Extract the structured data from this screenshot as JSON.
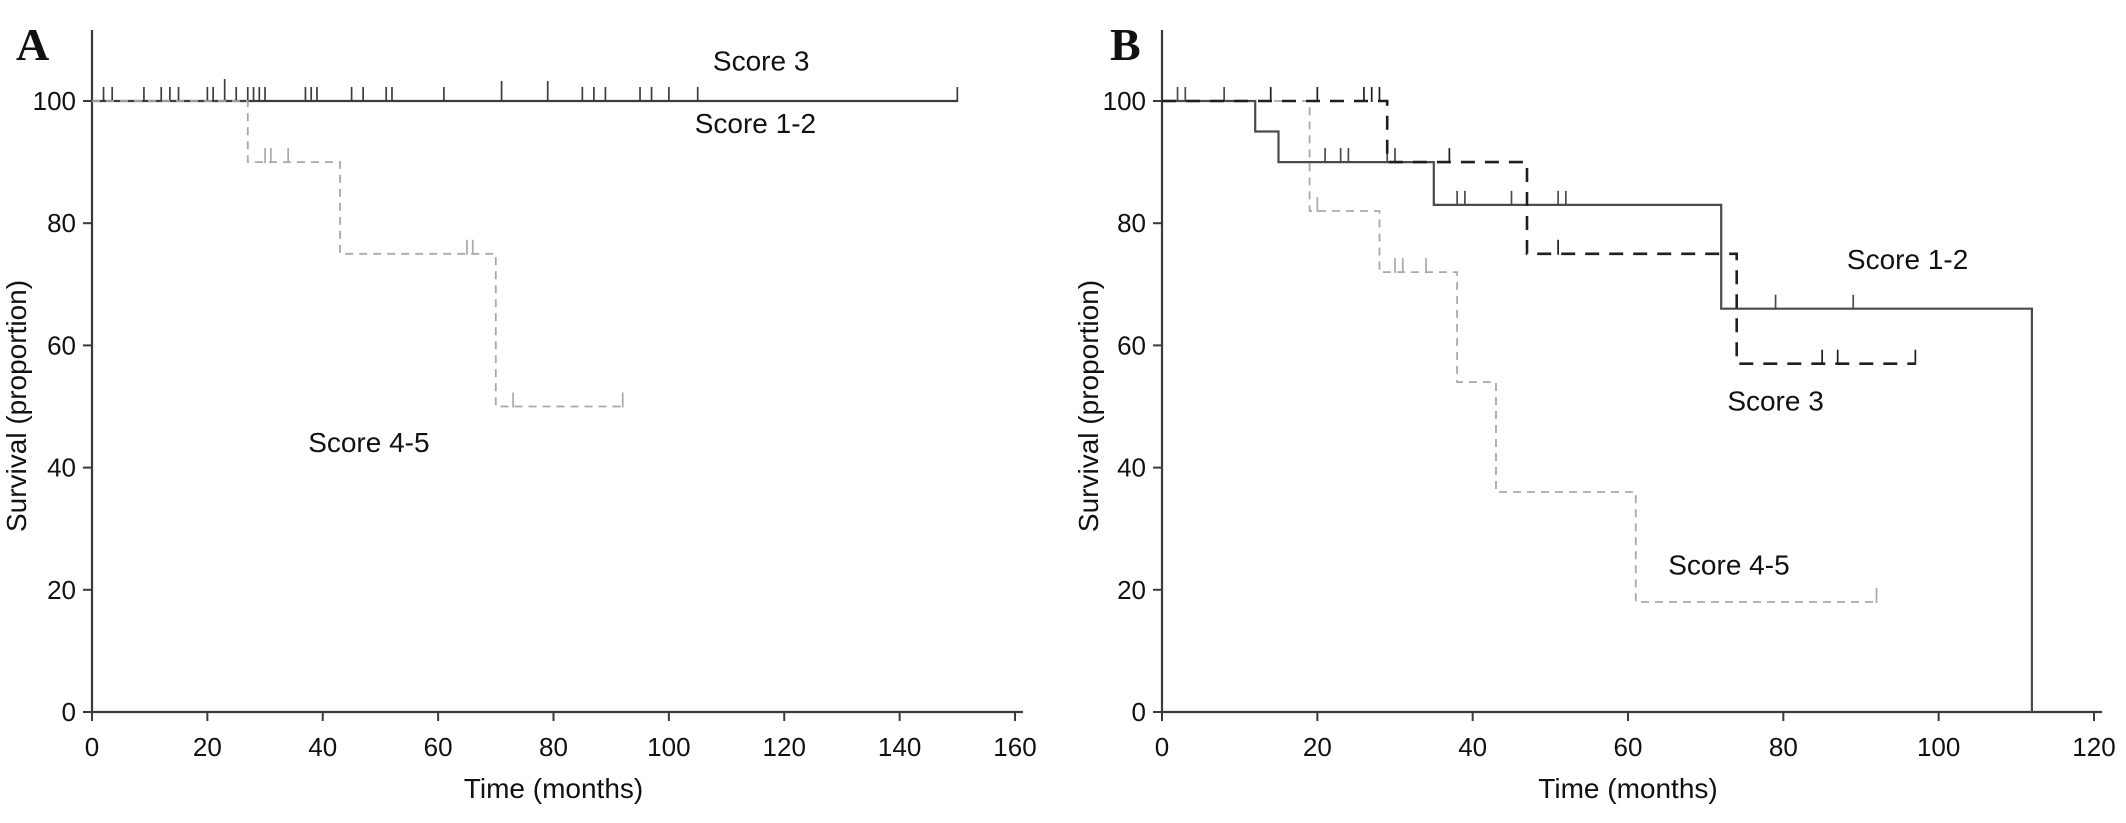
{
  "figure": {
    "background": "#ffffff",
    "axis_color": "#3a3a3a",
    "text_color": "#111111",
    "panels": [
      {
        "letter": "A"
      },
      {
        "letter": "B"
      }
    ]
  },
  "chart_data": [
    {
      "type": "line",
      "panel": "A",
      "subtype": "kaplan-meier-step",
      "xlabel": "Time (months)",
      "ylabel": "Survival (proportion)",
      "xlim": [
        0,
        160
      ],
      "ylim": [
        0,
        100
      ],
      "xticks": [
        0,
        20,
        40,
        60,
        80,
        100,
        120,
        140,
        160
      ],
      "yticks": [
        0,
        20,
        40,
        60,
        80,
        100
      ],
      "grid": false,
      "legend": "inline-labels",
      "series": [
        {
          "name": "Score 3",
          "line_style": "solid",
          "color": "#3d3d3d",
          "width": 2.2,
          "dash": null,
          "steps": [
            [
              0,
              100
            ],
            [
              150,
              100
            ]
          ],
          "censors": [
            [
              2,
              100
            ],
            [
              3.5,
              100
            ],
            [
              9,
              100
            ],
            [
              12,
              100
            ],
            [
              13.5,
              100
            ],
            [
              15,
              100
            ],
            [
              20,
              100
            ],
            [
              21,
              100
            ],
            [
              23,
              100,
              22
            ],
            [
              25,
              100
            ],
            [
              27,
              100
            ],
            [
              28,
              100
            ],
            [
              29,
              100
            ],
            [
              30,
              100
            ],
            [
              37,
              100
            ],
            [
              38,
              100
            ],
            [
              39,
              100
            ],
            [
              45,
              100
            ],
            [
              47,
              100
            ],
            [
              51,
              100
            ],
            [
              52,
              100
            ],
            [
              61,
              100
            ],
            [
              71,
              100,
              20
            ],
            [
              79,
              100,
              20
            ],
            [
              85,
              100
            ],
            [
              87,
              100
            ],
            [
              89,
              100
            ],
            [
              95,
              100
            ],
            [
              97,
              100
            ],
            [
              100,
              100
            ],
            [
              105,
              100
            ],
            [
              150,
              100
            ]
          ],
          "label": {
            "text": "Score 3",
            "x": 116,
            "y": 106.5
          }
        },
        {
          "name": "Score 1-2",
          "line_style": "dashed",
          "color": "#3d3d3d",
          "width": 2.0,
          "dash": "10,7",
          "steps": [
            [
              0,
              100
            ],
            [
              150,
              100
            ]
          ],
          "censors": [],
          "label": {
            "text": "Score 1-2",
            "x": 115,
            "y": 96.2
          }
        },
        {
          "name": "Score 4-5",
          "line_style": "dashed",
          "color": "#a9a9a9",
          "width": 1.8,
          "dash": "8,6",
          "steps": [
            [
              0,
              100
            ],
            [
              27,
              100
            ],
            [
              27,
              90
            ],
            [
              43,
              90
            ],
            [
              43,
              75
            ],
            [
              70,
              75
            ],
            [
              70,
              50
            ],
            [
              92,
              50
            ]
          ],
          "censors": [
            [
              30,
              90
            ],
            [
              31,
              90
            ],
            [
              34,
              90
            ],
            [
              65,
              75
            ],
            [
              66,
              75
            ],
            [
              73,
              50
            ],
            [
              92,
              50
            ]
          ],
          "label": {
            "text": "Score 4-5",
            "x": 48,
            "y": 44
          }
        }
      ]
    },
    {
      "type": "line",
      "panel": "B",
      "subtype": "kaplan-meier-step",
      "xlabel": "Time (months)",
      "ylabel": "Survival (proportion)",
      "xlim": [
        0,
        120
      ],
      "ylim": [
        0,
        100
      ],
      "xticks": [
        0,
        20,
        40,
        60,
        80,
        100,
        120
      ],
      "yticks": [
        0,
        20,
        40,
        60,
        80,
        100
      ],
      "grid": false,
      "legend": "inline-labels",
      "series": [
        {
          "name": "Score 4-5",
          "line_style": "dashed",
          "color": "#a9a9a9",
          "width": 1.8,
          "dash": "8,6",
          "steps": [
            [
              0,
              100
            ],
            [
              19,
              100
            ],
            [
              19,
              82
            ],
            [
              28,
              82
            ],
            [
              28,
              72
            ],
            [
              38,
              72
            ],
            [
              38,
              54
            ],
            [
              43,
              54
            ],
            [
              43,
              36
            ],
            [
              61,
              36
            ],
            [
              61,
              18
            ],
            [
              92,
              18
            ]
          ],
          "censors": [
            [
              20,
              82
            ],
            [
              30,
              72
            ],
            [
              31,
              72
            ],
            [
              34,
              72
            ],
            [
              92,
              18
            ]
          ],
          "label": {
            "text": "Score 4-5",
            "x": 73,
            "y": 24
          }
        },
        {
          "name": "Score 1-2",
          "line_style": "solid",
          "color": "#4a4a4a",
          "width": 2.2,
          "dash": null,
          "steps": [
            [
              0,
              100
            ],
            [
              12,
              100
            ],
            [
              12,
              95
            ],
            [
              15,
              95
            ],
            [
              15,
              90
            ],
            [
              35,
              90
            ],
            [
              35,
              83
            ],
            [
              72,
              83
            ],
            [
              72,
              66
            ],
            [
              112,
              66
            ],
            [
              112,
              0
            ]
          ],
          "censors": [
            [
              2,
              100
            ],
            [
              3,
              100
            ],
            [
              8,
              100
            ],
            [
              21,
              90
            ],
            [
              23,
              90
            ],
            [
              24,
              90
            ],
            [
              29,
              90
            ],
            [
              30,
              90
            ],
            [
              38,
              83
            ],
            [
              39,
              83
            ],
            [
              45,
              83
            ],
            [
              51,
              83
            ],
            [
              52,
              83
            ],
            [
              79,
              66
            ],
            [
              89,
              66
            ]
          ],
          "label": {
            "text": "Score 1-2",
            "x": 96,
            "y": 74
          }
        },
        {
          "name": "Score 3",
          "line_style": "dashed",
          "color": "#1f1f1f",
          "width": 2.6,
          "dash": "14,10",
          "steps": [
            [
              0,
              100
            ],
            [
              29,
              100
            ],
            [
              29,
              90
            ],
            [
              47,
              90
            ],
            [
              47,
              75
            ],
            [
              74,
              75
            ],
            [
              74,
              57
            ],
            [
              97,
              57
            ]
          ],
          "censors": [
            [
              14,
              100
            ],
            [
              20,
              100
            ],
            [
              26,
              100
            ],
            [
              27,
              100
            ],
            [
              28,
              100
            ],
            [
              37,
              90
            ],
            [
              51,
              75
            ],
            [
              85,
              57
            ],
            [
              87,
              57
            ],
            [
              97,
              57
            ]
          ],
          "label": {
            "text": "Score 3",
            "x": 79,
            "y": 50.8
          }
        }
      ]
    }
  ]
}
